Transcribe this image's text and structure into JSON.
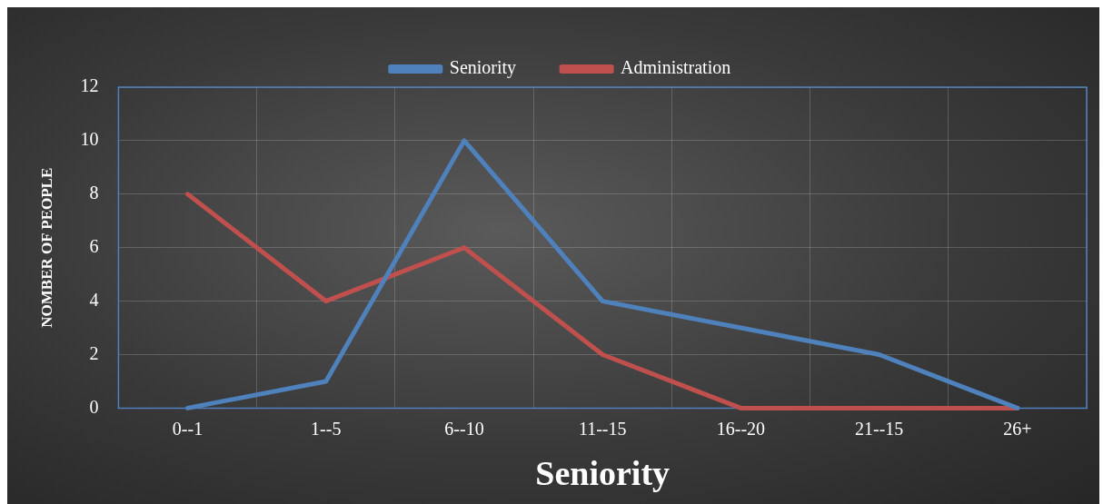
{
  "chart_data": {
    "type": "line",
    "xlabel": "Seniority",
    "ylabel": "NOMBER OF PEOPLE",
    "categories": [
      "0--1",
      "1--5",
      "6--10",
      "11--15",
      "16--20",
      "21--15",
      "26+"
    ],
    "series": [
      {
        "name": "Seniority",
        "color": "#4f81bd",
        "values": [
          0,
          1,
          10,
          4,
          3,
          2,
          0
        ]
      },
      {
        "name": "Administration",
        "color": "#c0504d",
        "values": [
          8,
          4,
          6,
          2,
          0,
          0,
          0
        ]
      }
    ],
    "ylim": [
      0,
      12
    ],
    "yticks": [
      0,
      2,
      4,
      6,
      8,
      10,
      12
    ],
    "grid": true,
    "legend": "top",
    "marker": "none",
    "line_style": "solid"
  }
}
